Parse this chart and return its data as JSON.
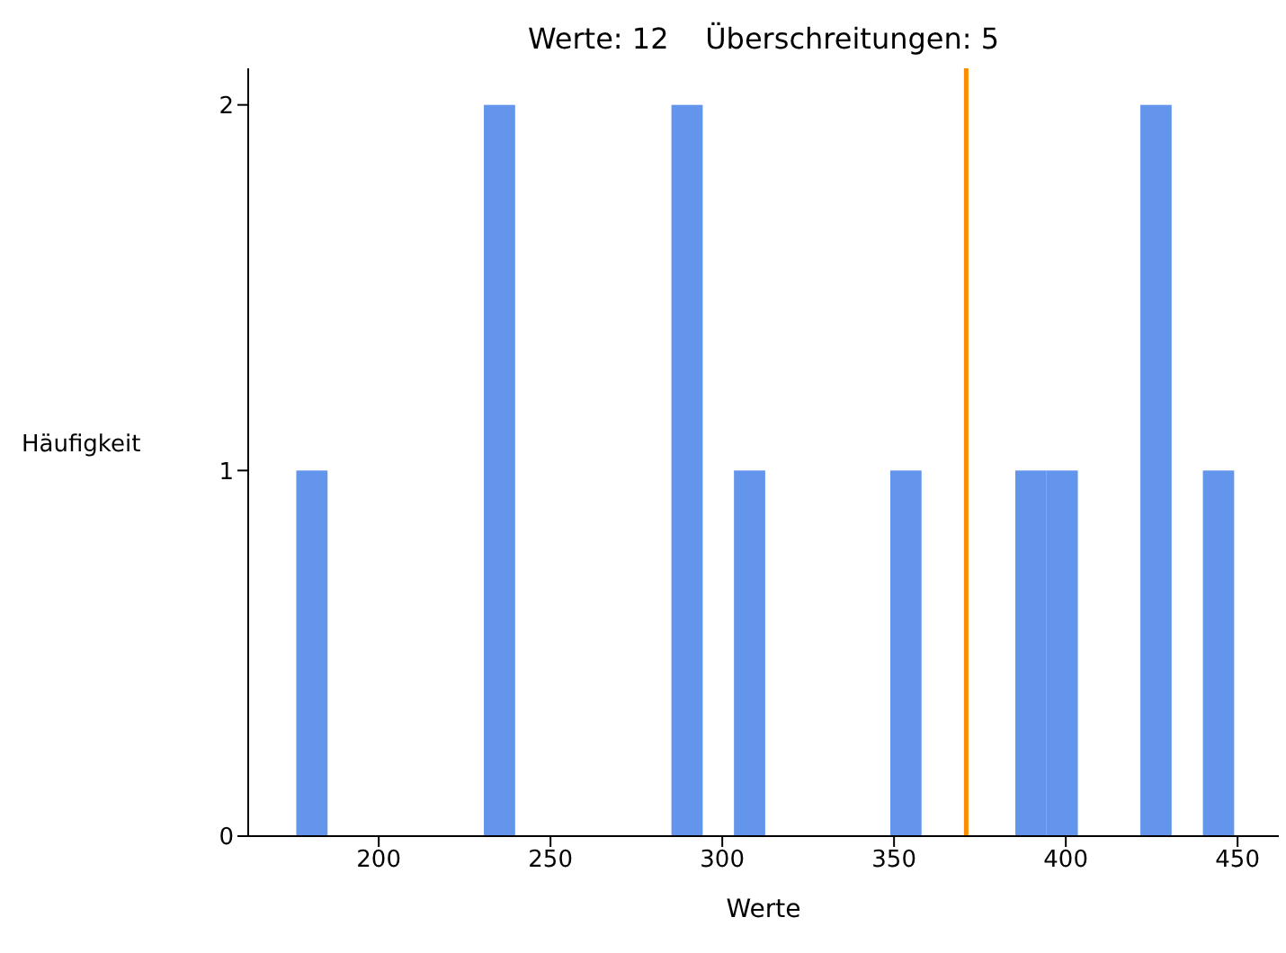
{
  "chart_data": {
    "type": "histogram",
    "title": "Werte: 12    Überschreitungen: 5",
    "xlabel": "Werte",
    "ylabel": "Häufigkeit",
    "bins": [
      176,
      185.1,
      194.2,
      203.3,
      212.4,
      221.5,
      230.6,
      239.7,
      248.8,
      257.9,
      267,
      276.1,
      285.2,
      294.3,
      303.4,
      312.5,
      321.6,
      330.7,
      339.8,
      348.9,
      358,
      367.1,
      376.2,
      385.3,
      394.4,
      403.5,
      412.6,
      421.7,
      430.8,
      439.9,
      449
    ],
    "values": [
      1,
      0,
      0,
      0,
      0,
      0,
      2,
      0,
      0,
      0,
      0,
      0,
      2,
      0,
      1,
      0,
      0,
      0,
      0,
      1,
      0,
      0,
      0,
      1,
      1,
      0,
      0,
      2,
      0,
      1
    ],
    "color": "#6495ed",
    "xlim": [
      162,
      462
    ],
    "xticks": [
      200,
      250,
      300,
      350,
      400,
      450
    ],
    "ylim": [
      0,
      2.1
    ],
    "yticks": [
      0,
      1,
      2
    ],
    "ref_lines": [
      {
        "axis": "x",
        "value": 371,
        "color": "#ff8c00"
      }
    ],
    "grid": false
  }
}
